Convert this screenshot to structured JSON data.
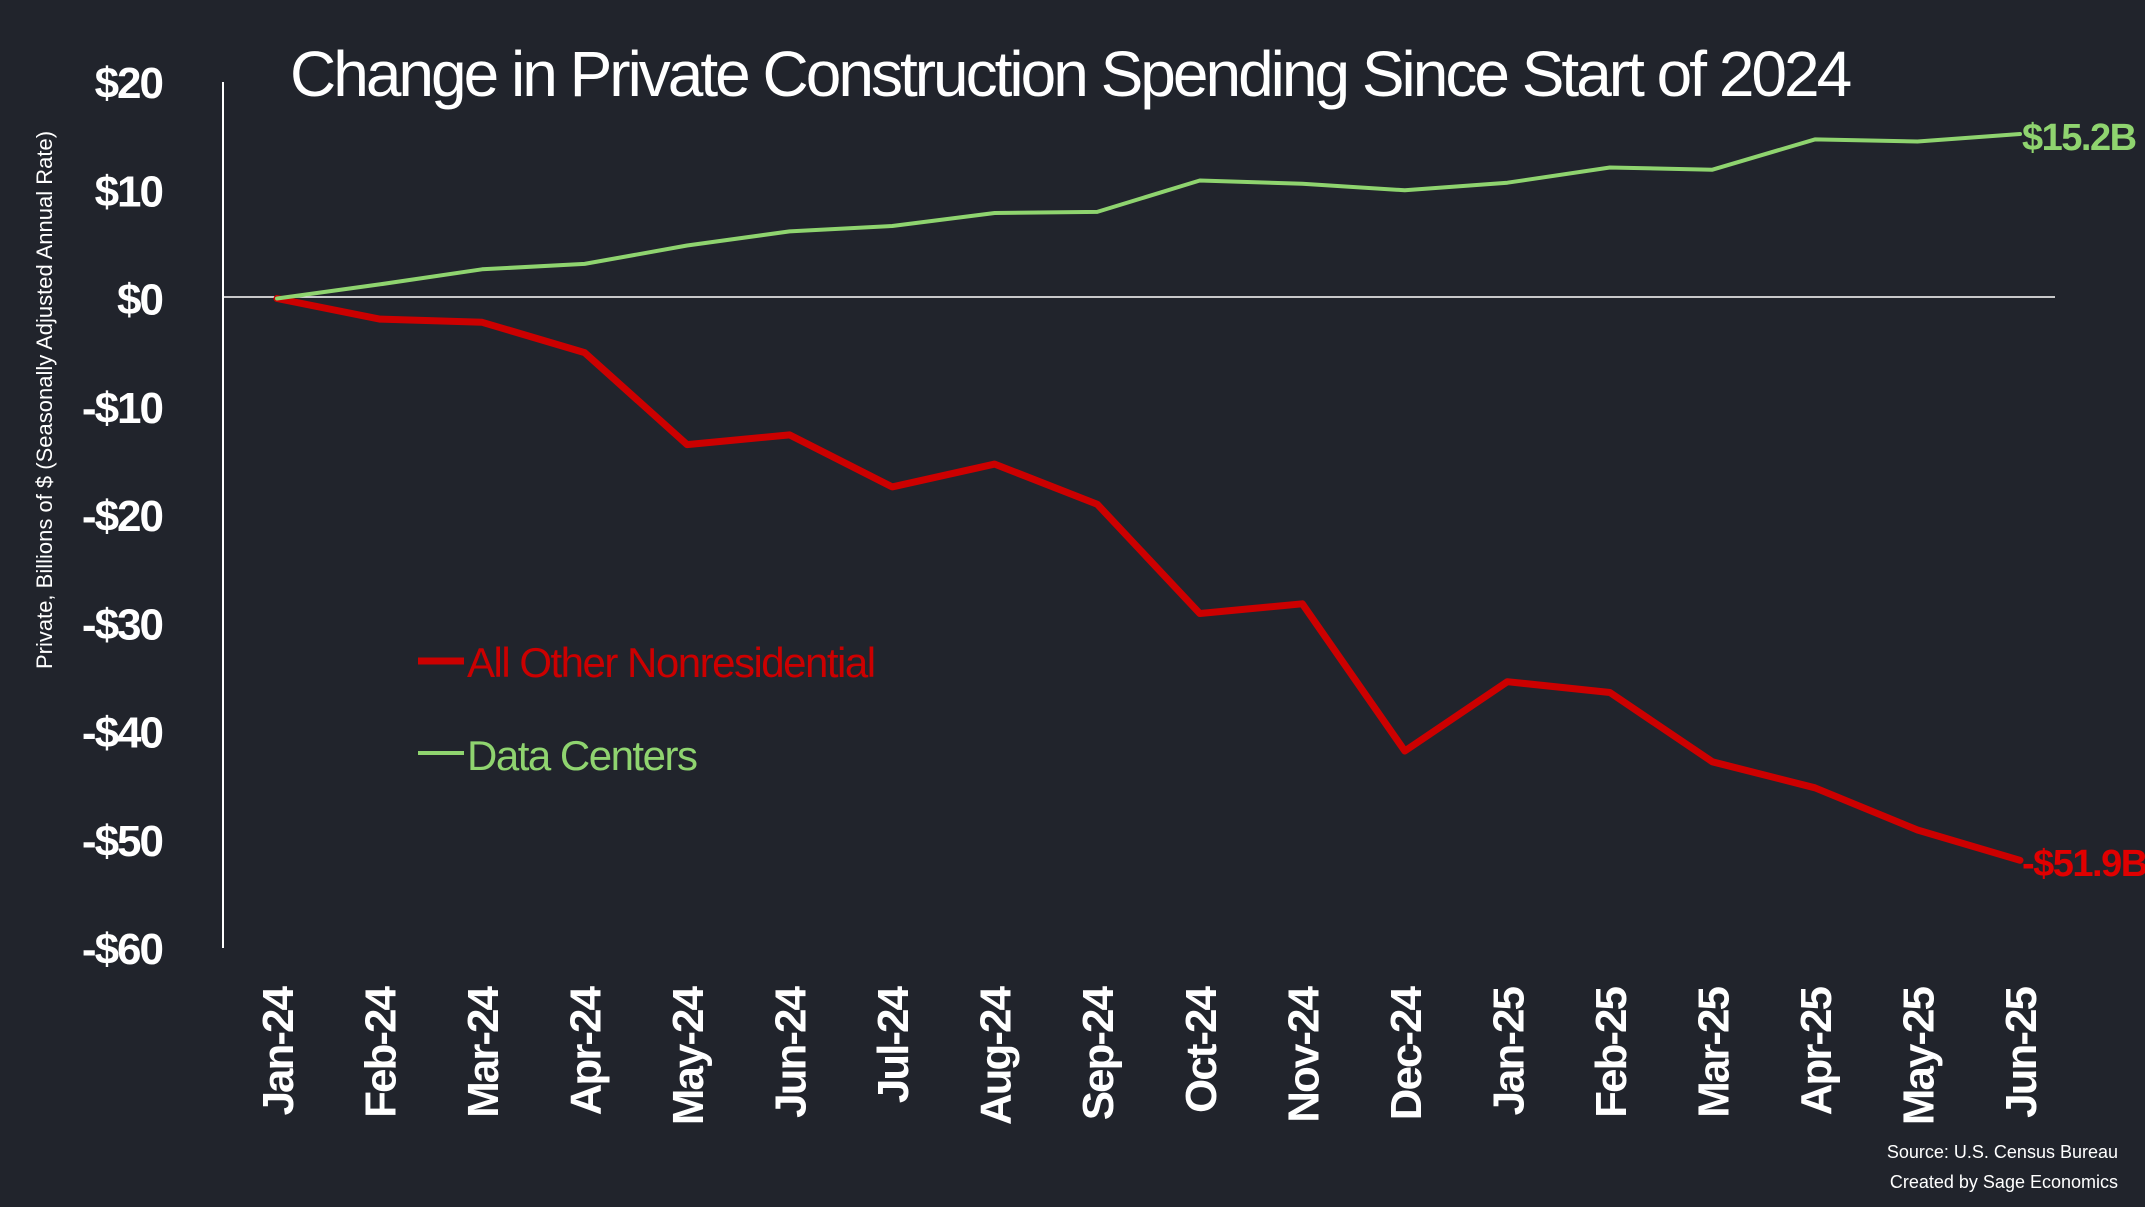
{
  "chart_data": {
    "type": "line",
    "title": "Change in Private Construction Spending Since Start of 2024",
    "ylabel": "Private, Billions of $ (Seasonally Adjusted Annual Rate)",
    "xlabel": "",
    "ylim": [
      -60,
      20
    ],
    "yticks": [
      20,
      10,
      0,
      -10,
      -20,
      -30,
      -40,
      -50,
      -60
    ],
    "ytick_labels": [
      "$20",
      "$10",
      "$0",
      "-$10",
      "-$20",
      "-$30",
      "-$40",
      "-$50",
      "-$60"
    ],
    "categories": [
      "Jan-24",
      "Feb-24",
      "Mar-24",
      "Apr-24",
      "May-24",
      "Jun-24",
      "Jul-24",
      "Aug-24",
      "Sep-24",
      "Oct-24",
      "Nov-24",
      "Dec-24",
      "Jan-25",
      "Feb-25",
      "Mar-25",
      "Apr-25",
      "May-25",
      "Jun-25"
    ],
    "series": [
      {
        "name": "All Other Nonresidential",
        "color": "#cc0000",
        "values": [
          0,
          -1.9,
          -2.2,
          -5.0,
          -13.5,
          -12.6,
          -17.4,
          -15.3,
          -19.0,
          -29.1,
          -28.2,
          -41.8,
          -35.4,
          -36.4,
          -42.8,
          -45.2,
          -49.1,
          -51.9
        ],
        "end_label": "-$51.9B"
      },
      {
        "name": "Data Centers",
        "color": "#8fd46f",
        "values": [
          0,
          1.3,
          2.7,
          3.2,
          4.9,
          6.2,
          6.7,
          7.9,
          8.0,
          10.9,
          10.6,
          10.0,
          10.7,
          12.1,
          11.9,
          14.7,
          14.5,
          15.2
        ],
        "end_label": "$15.2B"
      }
    ],
    "zero_line": true,
    "legend_position": "center-left"
  },
  "source": {
    "line1": "Source: U.S. Census Bureau",
    "line2": "Created by Sage Economics"
  }
}
